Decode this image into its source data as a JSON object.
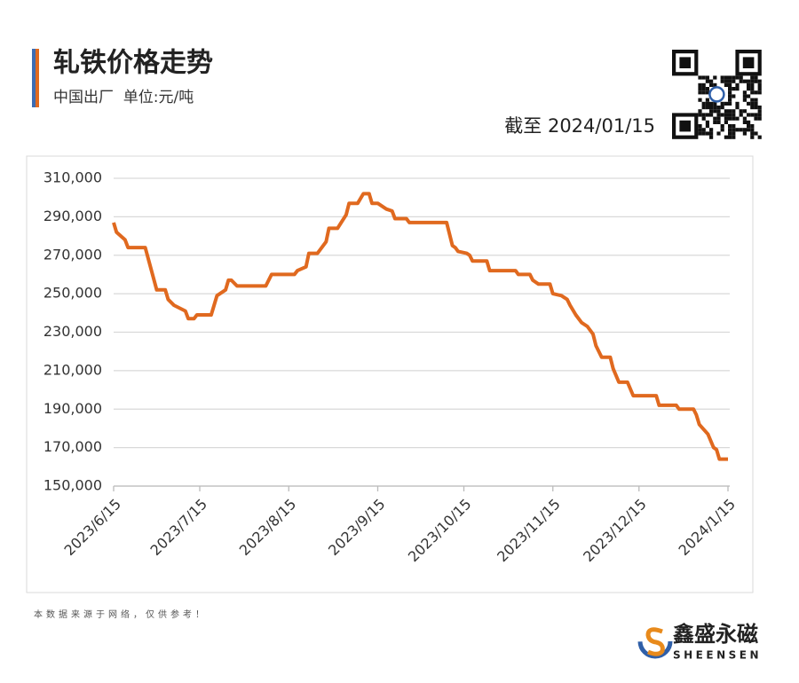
{
  "header": {
    "title": "轧铁价格走势",
    "subtitle": "中国出厂  单位:元/吨",
    "as_of": "截至 2024/01/15"
  },
  "chart_data": {
    "type": "line",
    "color": "#e0691f",
    "grid": true,
    "x": [
      "2023/6/15",
      "2023/6/16",
      "2023/6/19",
      "2023/6/20",
      "2023/6/26",
      "2023/6/30",
      "2023/7/3",
      "2023/7/4",
      "2023/7/6",
      "2023/7/10",
      "2023/7/11",
      "2023/7/13",
      "2023/7/14",
      "2023/7/19",
      "2023/7/21",
      "2023/7/24",
      "2023/7/25",
      "2023/7/26",
      "2023/7/28",
      "2023/8/7",
      "2023/8/9",
      "2023/8/17",
      "2023/8/18",
      "2023/8/21",
      "2023/8/22",
      "2023/8/25",
      "2023/8/28",
      "2023/8/29",
      "2023/9/1",
      "2023/9/4",
      "2023/9/5",
      "2023/9/8",
      "2023/9/10",
      "2023/9/12",
      "2023/9/13",
      "2023/9/15",
      "2023/9/18",
      "2023/9/20",
      "2023/9/21",
      "2023/9/25",
      "2023/9/26",
      "2023/10/9",
      "2023/10/11",
      "2023/10/12",
      "2023/10/13",
      "2023/10/16",
      "2023/10/17",
      "2023/10/18",
      "2023/10/23",
      "2023/10/24",
      "2023/11/2",
      "2023/11/3",
      "2023/11/7",
      "2023/11/8",
      "2023/11/10",
      "2023/11/14",
      "2023/11/15",
      "2023/11/18",
      "2023/11/20",
      "2023/11/21",
      "2023/11/23",
      "2023/11/25",
      "2023/11/27",
      "2023/11/29",
      "2023/11/30",
      "2023/12/2",
      "2023/12/5",
      "2023/12/6",
      "2023/12/8",
      "2023/12/11",
      "2023/12/13",
      "2023/12/21",
      "2023/12/22",
      "2023/12/28",
      "2023/12/29",
      "2024/1/3",
      "2024/1/4",
      "2024/1/5",
      "2024/1/8",
      "2024/1/10",
      "2024/1/11",
      "2024/1/12",
      "2024/1/15"
    ],
    "values": [
      287000,
      282000,
      278000,
      274000,
      274000,
      252000,
      252000,
      247000,
      244000,
      241000,
      237000,
      237000,
      239000,
      239000,
      249000,
      252000,
      257000,
      257000,
      254000,
      254000,
      260000,
      260000,
      262000,
      264000,
      271000,
      271000,
      277000,
      284000,
      284000,
      291000,
      297000,
      297000,
      302000,
      302000,
      297000,
      297000,
      294000,
      293000,
      289000,
      289000,
      287000,
      287000,
      275000,
      274000,
      272000,
      271000,
      270000,
      267000,
      267000,
      262000,
      262000,
      260000,
      260000,
      257000,
      255000,
      255000,
      250000,
      249000,
      247000,
      244000,
      239000,
      235000,
      233000,
      229000,
      223000,
      217000,
      217000,
      211000,
      204000,
      204000,
      197000,
      197000,
      192000,
      192000,
      190000,
      190000,
      187000,
      182000,
      177000,
      170000,
      169000,
      164000,
      164000
    ],
    "xlim": [
      "2023/6/15",
      "2024/1/15"
    ],
    "xticks": [
      "2023/6/15",
      "2023/7/15",
      "2023/8/15",
      "2023/9/15",
      "2023/10/15",
      "2023/11/15",
      "2023/12/15",
      "2024/1/15"
    ],
    "ylim": [
      150000,
      310000
    ],
    "yticks": [
      {
        "value": 150000,
        "label": "150,000"
      },
      {
        "value": 170000,
        "label": "170,000"
      },
      {
        "value": 190000,
        "label": "190,000"
      },
      {
        "value": 210000,
        "label": "210,000"
      },
      {
        "value": 230000,
        "label": "230,000"
      },
      {
        "value": 250000,
        "label": "250,000"
      },
      {
        "value": 270000,
        "label": "270,000"
      },
      {
        "value": 290000,
        "label": "290,000"
      },
      {
        "value": 310000,
        "label": "310,000"
      }
    ]
  },
  "footer": {
    "note": "本数据来源于网络，仅供参考！",
    "brand": "鑫盛永磁",
    "brand_en": "SHEENSEN"
  }
}
